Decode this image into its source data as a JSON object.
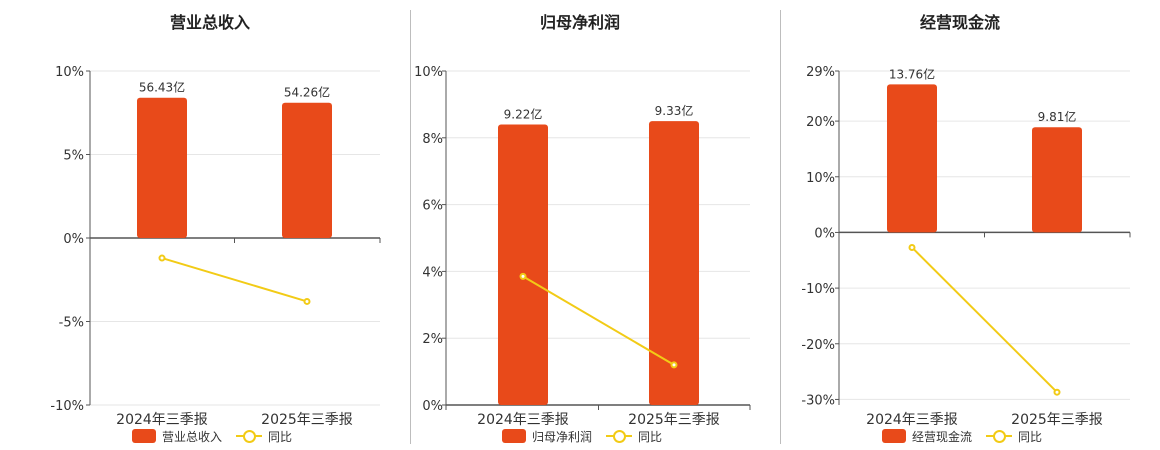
{
  "colors": {
    "bar": "#e84a1a",
    "line": "#f2cb16",
    "axis": "#555555",
    "grid": "#e6e6e6",
    "divider": "#bdbdbd"
  },
  "chart_data": [
    {
      "type": "bar",
      "title": "营业总收入",
      "categories": [
        "2024年三季报",
        "2025年三季报"
      ],
      "bar_labels": [
        "56.43亿",
        "54.26亿"
      ],
      "bar_series_name": "营业总收入",
      "bar_heights_pct": [
        8.4,
        8.1
      ],
      "line_series_name": "同比",
      "line_values": [
        -1.2,
        -3.8
      ],
      "yticks": [
        -10,
        -5,
        0,
        5,
        10
      ],
      "ytick_labels": [
        "-10%",
        "-5%",
        "0%",
        "5%",
        "10%"
      ],
      "ylim": [
        -10,
        10
      ],
      "grid": true,
      "legend": "bottom"
    },
    {
      "type": "bar",
      "title": "归母净利润",
      "categories": [
        "2024年三季报",
        "2025年三季报"
      ],
      "bar_labels": [
        "9.22亿",
        "9.33亿"
      ],
      "bar_series_name": "归母净利润",
      "bar_heights_pct": [
        8.4,
        8.5
      ],
      "line_series_name": "同比",
      "line_values": [
        3.85,
        1.2
      ],
      "yticks": [
        0,
        2,
        4,
        6,
        8,
        10
      ],
      "ytick_labels": [
        "0%",
        "2%",
        "4%",
        "6%",
        "8%",
        "10%"
      ],
      "ylim": [
        0,
        10
      ],
      "grid": true,
      "legend": "bottom"
    },
    {
      "type": "bar",
      "title": "经营现金流",
      "categories": [
        "2024年三季报",
        "2025年三季报"
      ],
      "bar_labels": [
        "13.76亿",
        "9.81亿"
      ],
      "bar_series_name": "经营现金流",
      "bar_heights_pct": [
        26.6,
        18.9
      ],
      "line_series_name": "同比",
      "line_values": [
        -2.7,
        -28.7
      ],
      "yticks": [
        -30,
        -20,
        -10,
        0,
        10,
        20,
        29
      ],
      "ytick_labels": [
        "-30%",
        "-20%",
        "-10%",
        "0%",
        "10%",
        "20%",
        "29%"
      ],
      "ylim": [
        -31,
        29
      ],
      "grid": true,
      "legend": "bottom"
    }
  ]
}
